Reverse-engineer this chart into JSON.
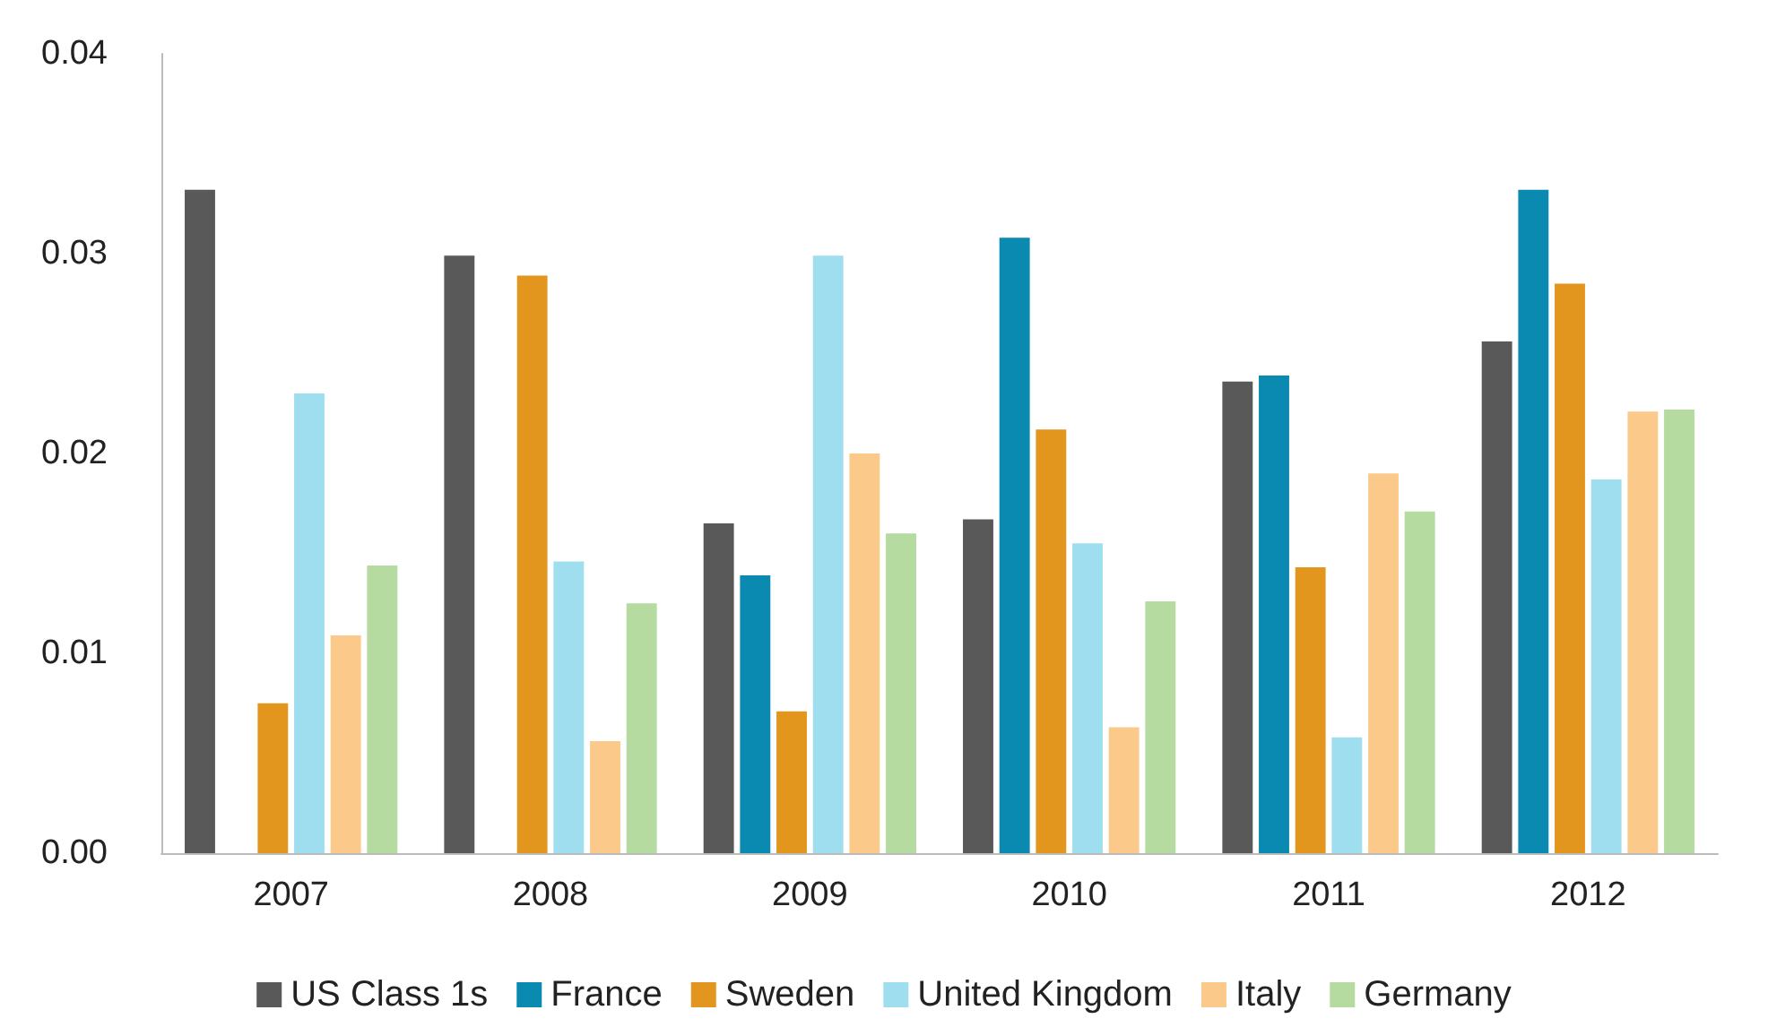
{
  "chart_data": {
    "type": "bar",
    "categories": [
      "2007",
      "2008",
      "2009",
      "2010",
      "2011",
      "2012"
    ],
    "series": [
      {
        "name": "US Class 1s",
        "color": "#595959",
        "values": [
          0.0332,
          0.0299,
          0.0165,
          0.0167,
          0.0236,
          0.0256
        ]
      },
      {
        "name": "France",
        "color": "#0a8ab0",
        "values": [
          null,
          null,
          0.0139,
          0.0308,
          0.0239,
          0.0332
        ]
      },
      {
        "name": "Sweden",
        "color": "#e3961d",
        "values": [
          0.0075,
          0.0289,
          0.0071,
          0.0212,
          0.0143,
          0.0285
        ]
      },
      {
        "name": "United Kingdom",
        "color": "#9fdeee",
        "values": [
          0.023,
          0.0146,
          0.0299,
          0.0155,
          0.0058,
          0.0187
        ]
      },
      {
        "name": "Italy",
        "color": "#fbc98a",
        "values": [
          0.0109,
          0.0056,
          0.02,
          0.0063,
          0.019,
          0.0221
        ]
      },
      {
        "name": "Germany",
        "color": "#b5dba0",
        "values": [
          0.0144,
          0.0125,
          0.016,
          0.0126,
          0.0171,
          0.0222
        ]
      }
    ],
    "ylim": [
      0,
      0.04
    ],
    "yticks": [
      {
        "value": 0,
        "label": "0.00"
      },
      {
        "value": 0.01,
        "label": "0.01"
      },
      {
        "value": 0.02,
        "label": "0.02"
      },
      {
        "value": 0.03,
        "label": "0.03"
      },
      {
        "value": 0.04,
        "label": "0.04"
      }
    ],
    "grid": false,
    "legend": "bottom"
  }
}
